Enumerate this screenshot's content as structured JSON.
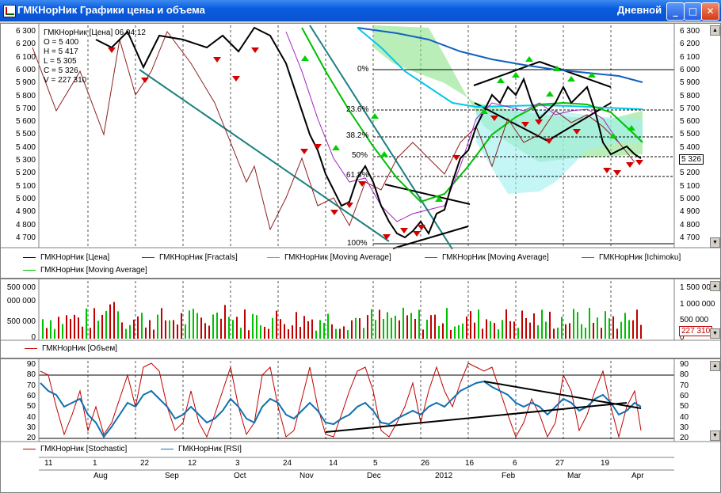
{
  "window": {
    "title": "ГМКНорНик Графики цены и объема",
    "period": "Дневной",
    "min_label": "_",
    "max_label": "□",
    "close_label": "✕"
  },
  "price_axis": [
    "6 300",
    "6 200",
    "6 100",
    "6 000",
    "5 900",
    "5 800",
    "5 700",
    "5 600",
    "5 500",
    "5 400",
    "5 300",
    "5 200",
    "5 100",
    "5 000",
    "4 900",
    "4 800",
    "4 700"
  ],
  "info": {
    "header": "ГМКНорНик [Цена] 06.04.12",
    "o": "O = 5 400",
    "h": "H = 5 417",
    "l": "L = 5 305",
    "c": "C = 5 326",
    "v": "V = 227 310"
  },
  "last_price": "5 326",
  "fib": {
    "f0": "0%",
    "f236": "23.6%",
    "f382": "38.2%",
    "f50": "50%",
    "f618": "61.8%",
    "f100": "100%"
  },
  "main_legend": [
    {
      "label": "ГМКНорНик [Цена]",
      "color": "#000000"
    },
    {
      "label": "ГМКНорНик [Fractals]",
      "color": "#c00000"
    },
    {
      "label": "ГМКНорНик [Moving Average]",
      "color": "#00c8e8"
    },
    {
      "label": "ГМКНорНик [Moving Average]",
      "color": "#1060c0"
    },
    {
      "label": "ГМКНорНик [Ichimoku]",
      "color": "#a04040"
    },
    {
      "label": "ГМКНорНик [Moving Average]",
      "color": "#00c000"
    }
  ],
  "volume_axis_left": [
    "500 000",
    "000 000",
    "500 000",
    "0"
  ],
  "volume_axis_right": [
    "1 500 000",
    "1 000 000",
    "500 000",
    "0"
  ],
  "volume_last": "227 310",
  "volume_legend": {
    "label": "ГМКНорНик [Объем]",
    "color": "#c00000"
  },
  "osc_axis": [
    "90",
    "80",
    "70",
    "60",
    "50",
    "40",
    "30",
    "20"
  ],
  "osc_legend": [
    {
      "label": "ГМКНорНик [Stochastic]",
      "color": "#c00000"
    },
    {
      "label": "ГМКНорНик [RSI]",
      "color": "#1070b0"
    }
  ],
  "time_days": [
    "11",
    "1",
    "22",
    "12",
    "3",
    "24",
    "14",
    "5",
    "26",
    "16",
    "6",
    "27",
    "19"
  ],
  "time_months": [
    "Aug",
    "Sep",
    "Oct",
    "Nov",
    "Dec",
    "2012",
    "Feb",
    "Mar",
    "Apr"
  ],
  "scroll": {
    "up": "▲",
    "down": "▼"
  }
}
